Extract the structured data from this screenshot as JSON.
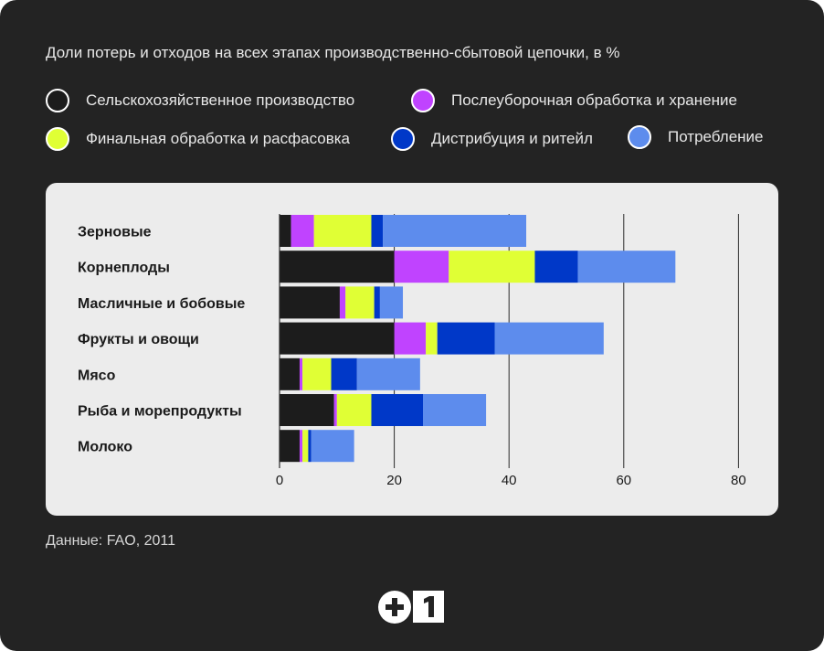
{
  "title": "Доли потерь и отходов на всех этапах производственно-сбытовой цепочки, в %",
  "source": "Данные: FAO, 2011",
  "logo": {
    "text": "+1"
  },
  "legend": [
    {
      "label": "Сельскохозяйственное производство",
      "color": "#1c1c1c"
    },
    {
      "label": "Послеуборочная обработка и хранение",
      "color": "#c043ff"
    },
    {
      "label": "Финальная обработка и расфасовка",
      "color": "#e0ff35"
    },
    {
      "label": "Дистрибуция и ритейл",
      "color": "#0038c8"
    },
    {
      "label": "Потребление",
      "color": "#5d8ced"
    }
  ],
  "chart_data": {
    "type": "bar",
    "orientation": "horizontal",
    "stacked": true,
    "title": "Доли потерь и отходов на всех этапах производственно-сбытовой цепочки, в %",
    "xlim": [
      0,
      80
    ],
    "xticks": [
      0,
      20,
      40,
      60,
      80
    ],
    "grid": "vertical",
    "categories": [
      "Зерновые",
      "Корнеплоды",
      "Масличные и бобовые",
      "Фрукты и овощи",
      "Мясо",
      "Рыба и морепродукты",
      "Молоко"
    ],
    "series": [
      {
        "name": "Сельскохозяйственное производство",
        "color": "#1c1c1c",
        "values": [
          2,
          20,
          10.5,
          20,
          3.5,
          9.5,
          3.5
        ]
      },
      {
        "name": "Послеуборочная обработка и хранение",
        "color": "#c043ff",
        "values": [
          4,
          9.5,
          1,
          5.5,
          0.5,
          0.5,
          0.5
        ]
      },
      {
        "name": "Финальная обработка и расфасовка",
        "color": "#e0ff35",
        "values": [
          10,
          15,
          5,
          2,
          5,
          6,
          1
        ]
      },
      {
        "name": "Дистрибуция и ритейл",
        "color": "#0038c8",
        "values": [
          2,
          7.5,
          1,
          10,
          4.5,
          9,
          0.5
        ]
      },
      {
        "name": "Потребление",
        "color": "#5d8ced",
        "values": [
          25,
          17,
          4,
          19,
          11,
          11,
          7.5
        ]
      }
    ]
  }
}
